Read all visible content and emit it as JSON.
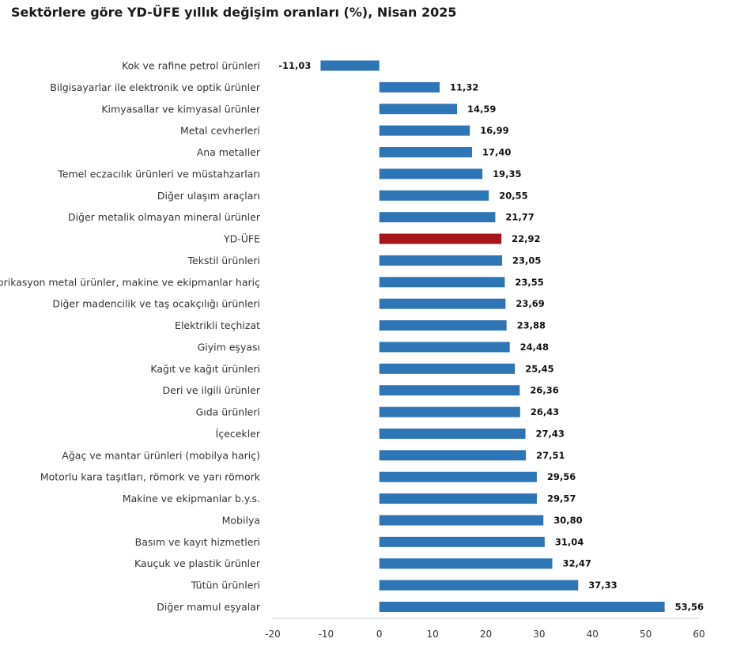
{
  "chart_data": {
    "type": "bar",
    "orientation": "horizontal",
    "title": "Sektörlere göre YD-ÜFE yıllık değişim oranları (%), Nisan 2025",
    "xlim": [
      -20,
      60
    ],
    "xticks": [
      "-20",
      "-10",
      "0",
      "10",
      "20",
      "30",
      "40",
      "50",
      "60"
    ],
    "grid": false,
    "colors": {
      "default": "#2e75b6",
      "highlight": "#a6141c"
    },
    "highlight_category": "YD-ÜFE",
    "categories": [
      "Kok ve rafine petrol ürünleri",
      "Bilgisayarlar ile elektronik ve optik ürünler",
      "Kimyasallar ve kimyasal ürünler",
      "Metal cevherleri",
      "Ana metaller",
      "Temel eczacılık ürünleri ve müstahzarları",
      "Diğer ulaşım araçları",
      "Diğer metalik olmayan mineral ürünler",
      "YD-ÜFE",
      "Tekstil ürünleri",
      "Fabrikasyon metal ürünler, makine ve ekipmanlar hariç",
      "Diğer madencilik ve taş ocakçılığı ürünleri",
      "Elektrikli teçhizat",
      "Giyim eşyası",
      "Kağıt ve kağıt ürünleri",
      "Deri ve ilgili ürünler",
      "Gıda ürünleri",
      "İçecekler",
      "Ağaç ve mantar ürünleri (mobilya hariç)",
      "Motorlu kara taşıtları, römork ve yarı römork",
      "Makine ve ekipmanlar b.y.s.",
      "Mobilya",
      "Basım ve kayıt hizmetleri",
      "Kauçuk ve plastik ürünler",
      "Tütün ürünleri",
      "Diğer mamul eşyalar"
    ],
    "values": [
      -11.03,
      11.32,
      14.59,
      16.99,
      17.4,
      19.35,
      20.55,
      21.77,
      22.92,
      23.05,
      23.55,
      23.69,
      23.88,
      24.48,
      25.45,
      26.36,
      26.43,
      27.43,
      27.51,
      29.56,
      29.57,
      30.8,
      31.04,
      32.47,
      37.33,
      53.56
    ],
    "value_labels": [
      "-11,03",
      "11,32",
      "14,59",
      "16,99",
      "17,40",
      "19,35",
      "20,55",
      "21,77",
      "22,92",
      "23,05",
      "23,55",
      "23,69",
      "23,88",
      "24,48",
      "25,45",
      "26,36",
      "26,43",
      "27,43",
      "27,51",
      "29,56",
      "29,57",
      "30,80",
      "31,04",
      "32,47",
      "37,33",
      "53,56"
    ]
  }
}
